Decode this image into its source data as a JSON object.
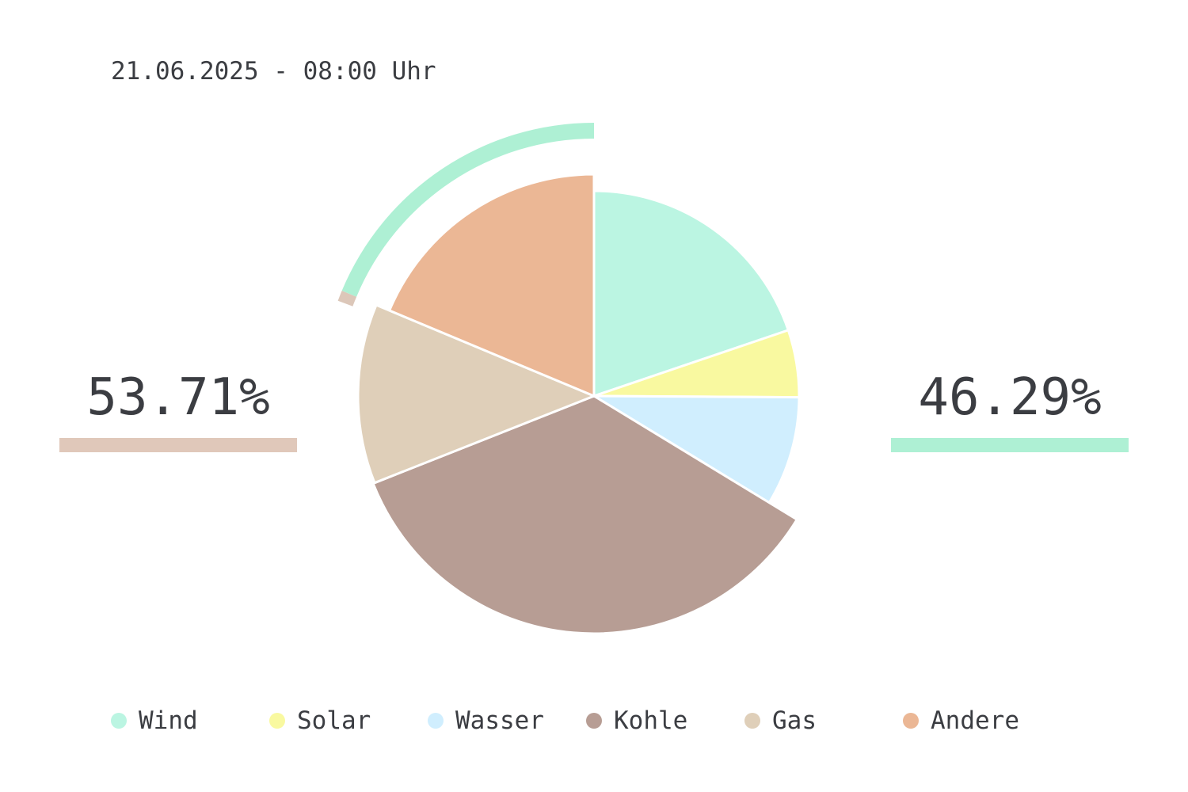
{
  "timestamp": "21.06.2025 - 08:00 Uhr",
  "summary": {
    "left": {
      "value": "53.71%",
      "color": "#e0c8ba"
    },
    "right": {
      "value": "46.29%",
      "color": "#aef0d4"
    }
  },
  "chart_data": {
    "type": "pie",
    "start_angle_deg": 0,
    "direction": "clockwise",
    "categories": [
      "Wind",
      "Solar",
      "Wasser",
      "Kohle",
      "Gas",
      "Andere"
    ],
    "values": [
      19.8,
      5.3,
      8.6,
      35.3,
      12.3,
      18.7
    ],
    "colors": [
      "#bbf5e2",
      "#f9f9a0",
      "#d0eefe",
      "#b79d94",
      "#dfcfb9",
      "#ebb795"
    ],
    "exploded": [
      "Kohle"
    ],
    "outer_arcs": [
      {
        "name": "Gas",
        "color": "#dcc7b9"
      },
      {
        "name": "Andere",
        "color": "#aef0d4"
      }
    ],
    "legend": {
      "position": "bottom"
    }
  }
}
